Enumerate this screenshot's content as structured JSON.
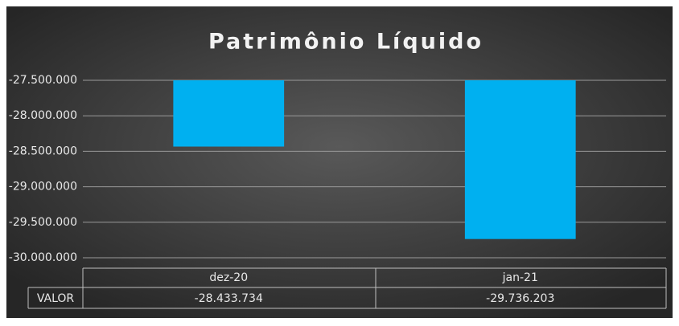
{
  "chart_data": {
    "type": "bar",
    "title": "Patrimônio Líquido",
    "categories": [
      "dez-20",
      "jan-21"
    ],
    "series": [
      {
        "name": "VALOR",
        "color": "#00b0f0",
        "values": [
          -28433734,
          -29736203
        ],
        "value_labels": [
          "-28.433.734",
          "-29.736.203"
        ]
      }
    ],
    "ylim": [
      -30000000,
      -27500000
    ],
    "yticks": [
      {
        "value": -27500000,
        "label": "-27.500.000"
      },
      {
        "value": -28000000,
        "label": "-28.000.000"
      },
      {
        "value": -28500000,
        "label": "-28.500.000"
      },
      {
        "value": -29000000,
        "label": "-29.000.000"
      },
      {
        "value": -29500000,
        "label": "-29.500.000"
      },
      {
        "value": -30000000,
        "label": "-30.000.000"
      }
    ],
    "grid": true
  }
}
